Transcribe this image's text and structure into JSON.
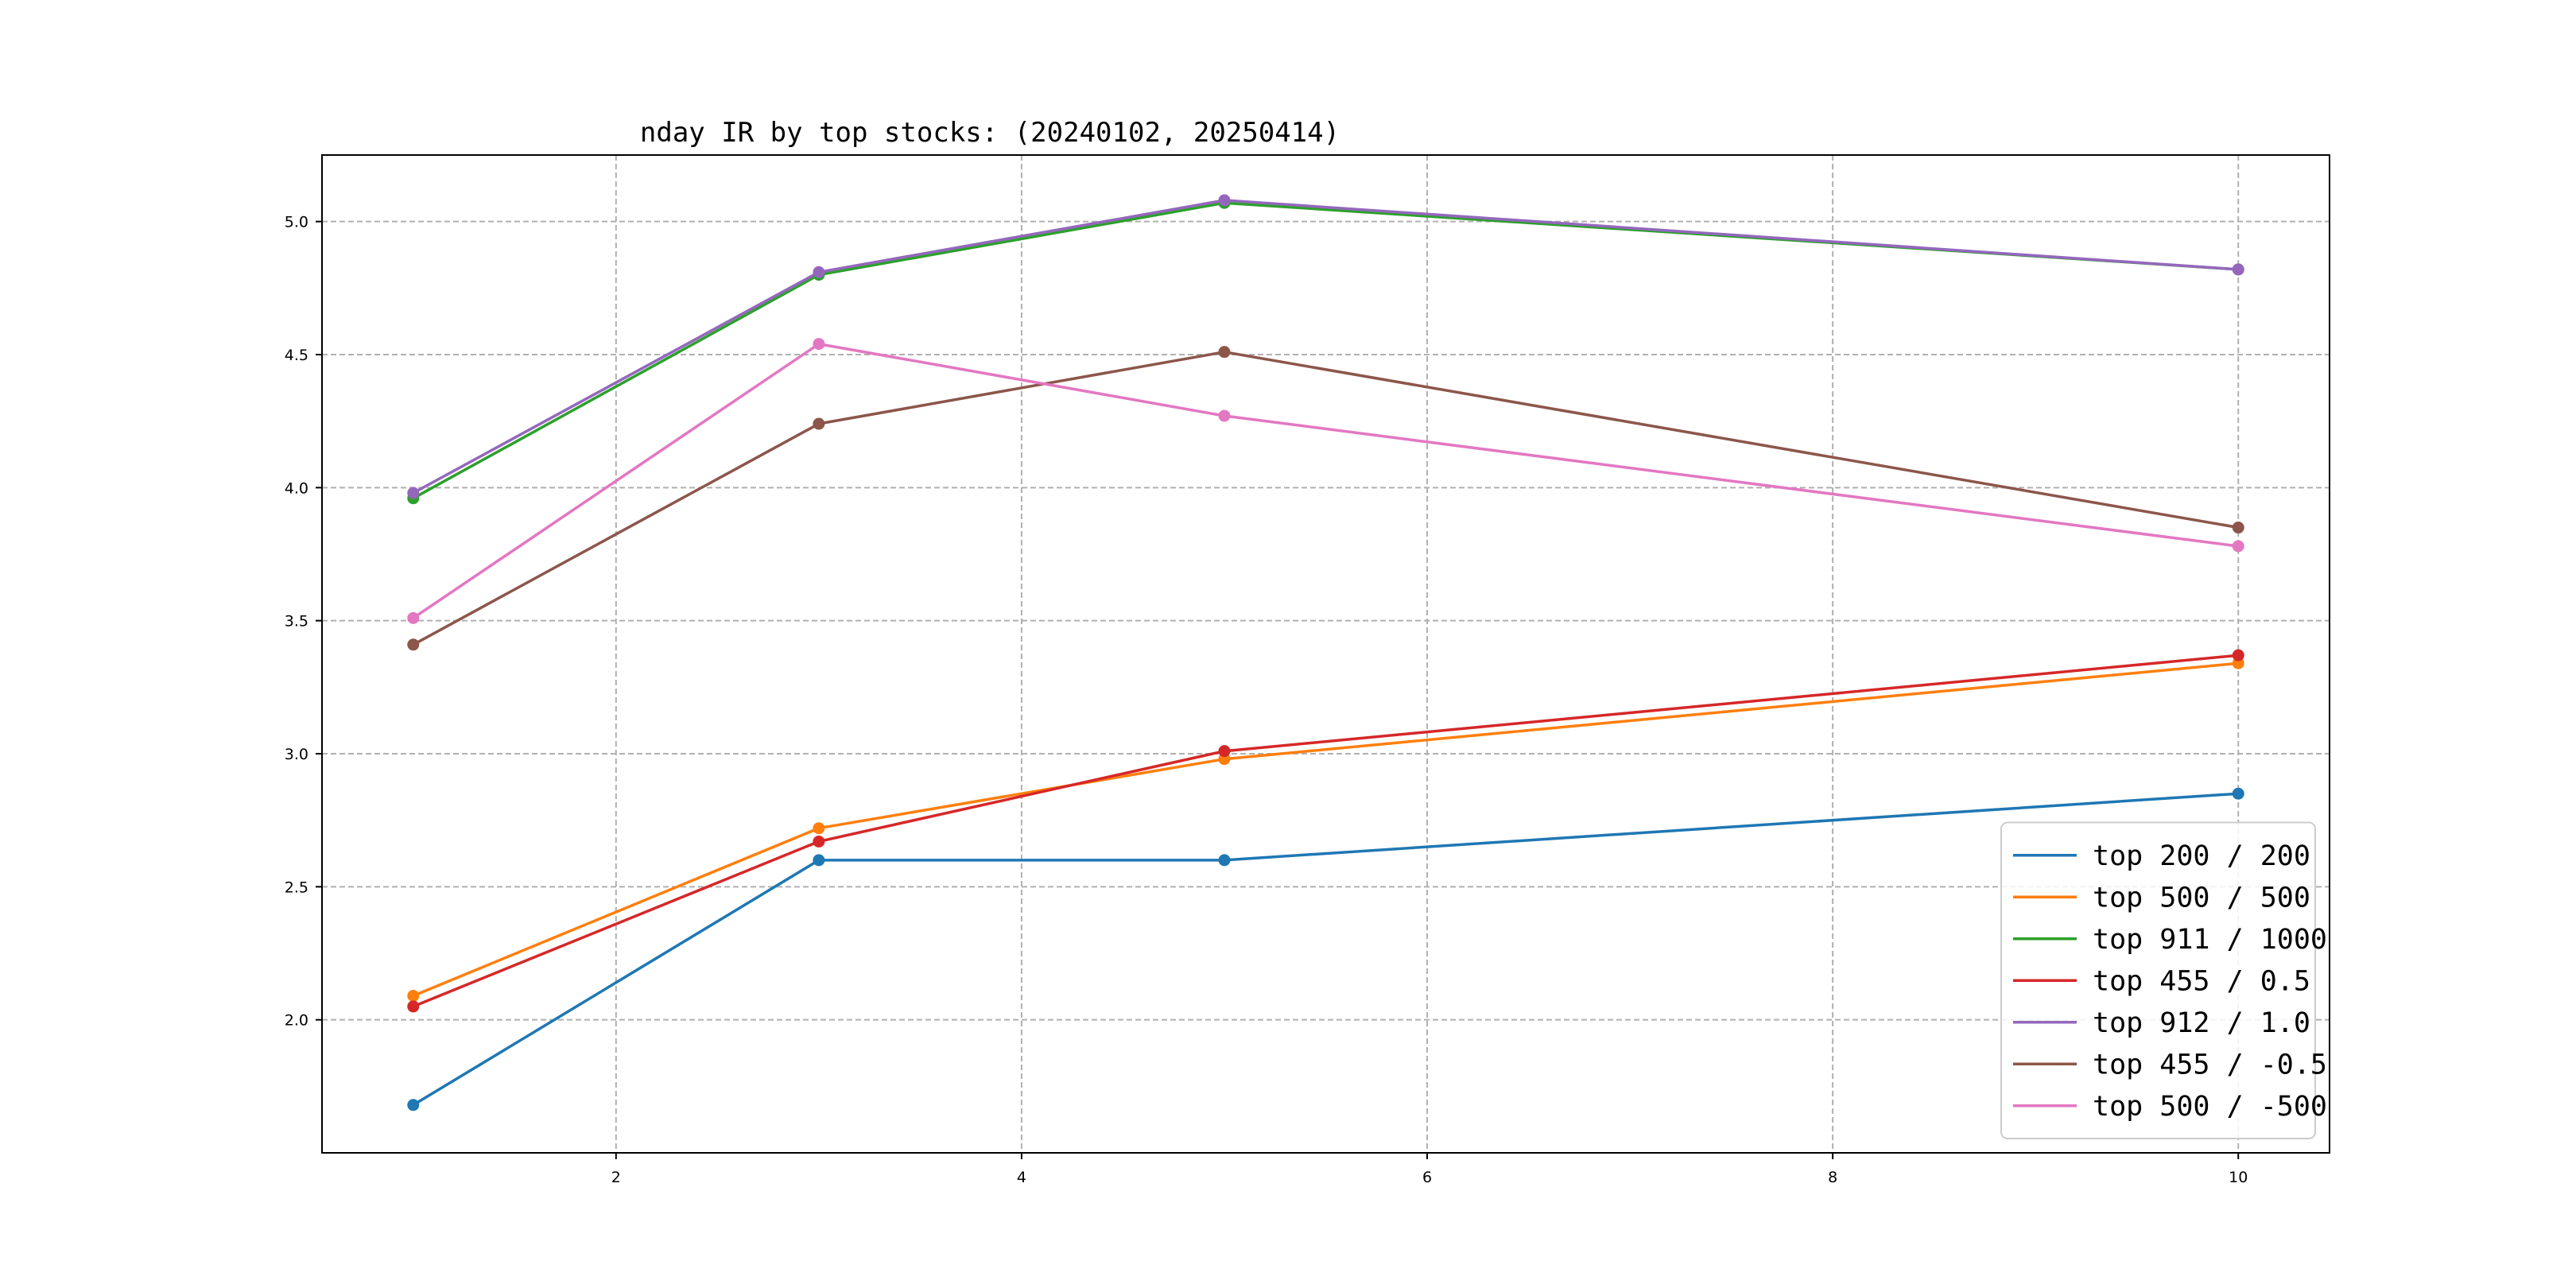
{
  "chart_data": {
    "type": "line",
    "title": "nday IR by top stocks: (20240102, 20250414)",
    "xlabel": "",
    "ylabel": "",
    "x": [
      1,
      3,
      5,
      10
    ],
    "xlim": [
      0.55,
      10.45
    ],
    "ylim": [
      1.5,
      5.25
    ],
    "xticks": [
      2,
      4,
      6,
      8,
      10
    ],
    "xtick_labels": [
      "2",
      "4",
      "6",
      "8",
      "10"
    ],
    "yticks": [
      2.0,
      2.5,
      3.0,
      3.5,
      4.0,
      4.5,
      5.0
    ],
    "ytick_labels": [
      "2.0",
      "2.5",
      "3.0",
      "3.5",
      "4.0",
      "4.5",
      "5.0"
    ],
    "grid": true,
    "legend_position": "lower-right",
    "series": [
      {
        "name": "top 200 / 200",
        "color": "#1f77b4",
        "values": [
          1.68,
          2.6,
          2.6,
          2.85
        ]
      },
      {
        "name": "top 500 / 500",
        "color": "#ff7f0e",
        "values": [
          2.09,
          2.72,
          2.98,
          3.34
        ]
      },
      {
        "name": "top 911 / 1000",
        "color": "#2ca02c",
        "values": [
          3.96,
          4.8,
          5.07,
          4.82
        ]
      },
      {
        "name": "top 455 / 0.5",
        "color": "#d62728",
        "values": [
          2.05,
          2.67,
          3.01,
          3.37
        ]
      },
      {
        "name": "top 912 / 1.0",
        "color": "#9467bd",
        "values": [
          3.98,
          4.81,
          5.08,
          4.82
        ]
      },
      {
        "name": "top 455 / -0.5",
        "color": "#8c564b",
        "values": [
          3.41,
          4.24,
          4.51,
          3.85
        ]
      },
      {
        "name": "top 500 / -500",
        "color": "#e377c2",
        "values": [
          3.51,
          4.54,
          4.27,
          3.78
        ]
      }
    ]
  }
}
